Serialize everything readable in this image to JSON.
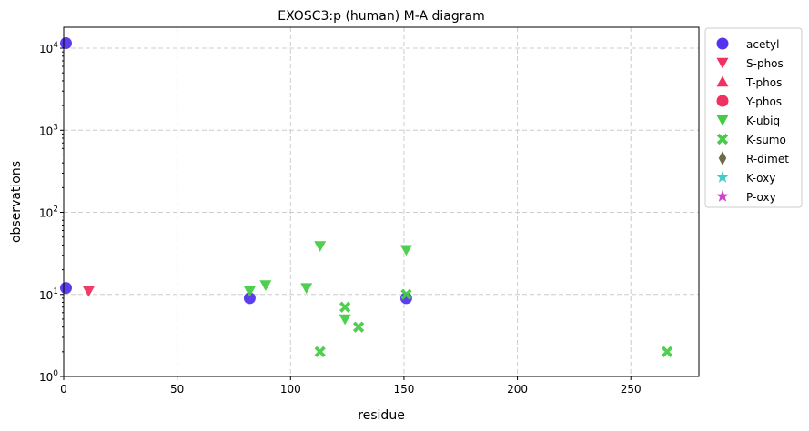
{
  "chart_data": {
    "type": "scatter",
    "title": "EXOSC3:p (human) M-A diagram",
    "xlabel": "residue",
    "ylabel": "observations",
    "xlim": [
      0,
      280
    ],
    "ylim": [
      1,
      18000
    ],
    "yscale": "log",
    "grid": true,
    "legend_position": "outside-right",
    "x_ticks": [
      {
        "value": 0,
        "label": "0"
      },
      {
        "value": 50,
        "label": "50"
      },
      {
        "value": 100,
        "label": "100"
      },
      {
        "value": 150,
        "label": "150"
      },
      {
        "value": 200,
        "label": "200"
      },
      {
        "value": 250,
        "label": "250"
      }
    ],
    "y_ticks": [
      {
        "value": 1,
        "base": "10",
        "exp": "0"
      },
      {
        "value": 10,
        "base": "10",
        "exp": "1"
      },
      {
        "value": 100,
        "base": "10",
        "exp": "2"
      },
      {
        "value": 1000,
        "base": "10",
        "exp": "3"
      },
      {
        "value": 10000,
        "base": "10",
        "exp": "4"
      }
    ],
    "series": [
      {
        "name": "acetyl",
        "marker": "circle",
        "color": "#5533ee",
        "points": [
          {
            "x": 1,
            "y": 11500
          },
          {
            "x": 1,
            "y": 12
          },
          {
            "x": 82,
            "y": 9
          },
          {
            "x": 151,
            "y": 9
          }
        ]
      },
      {
        "name": "S-phos",
        "marker": "triangle-down",
        "color": "#f03060",
        "points": [
          {
            "x": 11,
            "y": 11
          }
        ]
      },
      {
        "name": "T-phos",
        "marker": "triangle-up",
        "color": "#f03060",
        "points": []
      },
      {
        "name": "Y-phos",
        "marker": "circle",
        "color": "#f03060",
        "points": []
      },
      {
        "name": "K-ubiq",
        "marker": "triangle-down",
        "color": "#44cc44",
        "points": [
          {
            "x": 82,
            "y": 11
          },
          {
            "x": 89,
            "y": 13
          },
          {
            "x": 107,
            "y": 12
          },
          {
            "x": 113,
            "y": 39
          },
          {
            "x": 124,
            "y": 5
          },
          {
            "x": 151,
            "y": 35
          }
        ]
      },
      {
        "name": "K-sumo",
        "marker": "x",
        "color": "#44cc44",
        "points": [
          {
            "x": 113,
            "y": 2
          },
          {
            "x": 124,
            "y": 7
          },
          {
            "x": 130,
            "y": 4
          },
          {
            "x": 151,
            "y": 10
          },
          {
            "x": 266,
            "y": 2
          }
        ]
      },
      {
        "name": "R-dimet",
        "marker": "diamond",
        "color": "#6b6b44",
        "points": []
      },
      {
        "name": "K-oxy",
        "marker": "star",
        "color": "#44cccc",
        "points": []
      },
      {
        "name": "P-oxy",
        "marker": "star",
        "color": "#cc44cc",
        "points": []
      }
    ]
  }
}
